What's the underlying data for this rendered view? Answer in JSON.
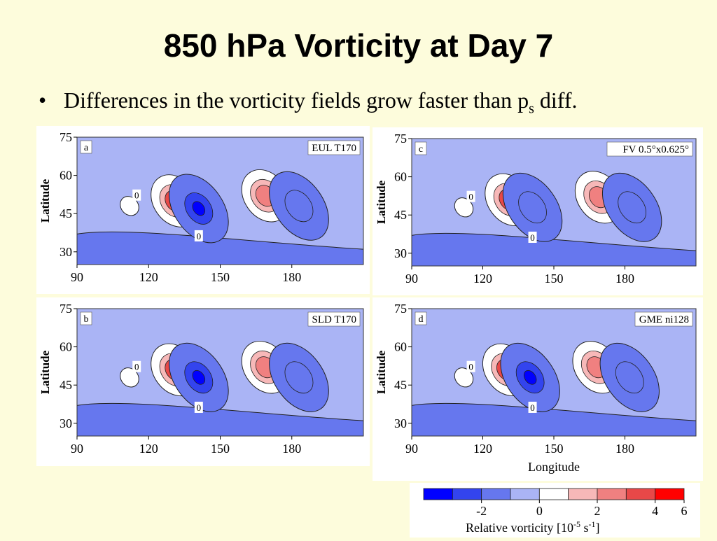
{
  "slide": {
    "title": "850 hPa Vorticity at Day 7",
    "bullet_main": "Differences in the vorticity fields grow faster than p",
    "bullet_sub": "s",
    "bullet_end": " diff."
  },
  "colors": {
    "background": "#fdfcdc",
    "levels": [
      "#0000ff",
      "#3344ee",
      "#6677ee",
      "#aab4f5",
      "#ffffff",
      "#f7b8b8",
      "#f08080",
      "#e84848",
      "#ff0000"
    ]
  },
  "chart_data": [
    {
      "type": "heatmap",
      "panel_letter": "a",
      "model_label": "EUL T170",
      "ylabel": "Latitude",
      "xlabel": "",
      "xlim": [
        90,
        210
      ],
      "ylim": [
        25,
        75
      ],
      "x_ticks": [
        "90",
        "120",
        "150",
        "180"
      ],
      "y_ticks": [
        "75",
        "60",
        "45",
        "30"
      ],
      "zero_labels": [
        "0",
        "0"
      ],
      "features": [
        {
          "lon": 131,
          "lat": 50,
          "value": 6,
          "sign": "positive"
        },
        {
          "lon": 141,
          "lat": 47,
          "value": -3,
          "sign": "negative"
        },
        {
          "lon": 169,
          "lat": 52,
          "value": 3,
          "sign": "positive"
        },
        {
          "lon": 183,
          "lat": 48,
          "value": -2,
          "sign": "negative"
        }
      ]
    },
    {
      "type": "heatmap",
      "panel_letter": "c",
      "model_label": "FV 0.5°x0.625°",
      "ylabel": "Latitude",
      "xlabel": "",
      "xlim": [
        90,
        210
      ],
      "ylim": [
        25,
        75
      ],
      "x_ticks": [
        "90",
        "120",
        "150",
        "180"
      ],
      "y_ticks": [
        "75",
        "60",
        "45",
        "30"
      ],
      "zero_labels": [
        "0",
        "0"
      ],
      "features": [
        {
          "lon": 131,
          "lat": 51,
          "value": 4,
          "sign": "positive"
        },
        {
          "lon": 141,
          "lat": 48,
          "value": -2,
          "sign": "negative"
        },
        {
          "lon": 169,
          "lat": 52,
          "value": 3,
          "sign": "positive"
        },
        {
          "lon": 183,
          "lat": 48,
          "value": -2,
          "sign": "negative"
        }
      ]
    },
    {
      "type": "heatmap",
      "panel_letter": "b",
      "model_label": "SLD T170",
      "ylabel": "Latitude",
      "xlabel": "",
      "xlim": [
        90,
        210
      ],
      "ylim": [
        25,
        75
      ],
      "x_ticks": [
        "90",
        "120",
        "150",
        "180"
      ],
      "y_ticks": [
        "75",
        "60",
        "45",
        "30"
      ],
      "zero_labels": [
        "0",
        "0"
      ],
      "features": [
        {
          "lon": 131,
          "lat": 51,
          "value": 5,
          "sign": "positive"
        },
        {
          "lon": 141,
          "lat": 48,
          "value": -3,
          "sign": "negative"
        },
        {
          "lon": 169,
          "lat": 52,
          "value": 3,
          "sign": "positive"
        },
        {
          "lon": 183,
          "lat": 48,
          "value": -2,
          "sign": "negative"
        }
      ]
    },
    {
      "type": "heatmap",
      "panel_letter": "d",
      "model_label": "GME ni128",
      "ylabel": "Latitude",
      "xlabel": "Longitude",
      "xlim": [
        90,
        210
      ],
      "ylim": [
        25,
        75
      ],
      "x_ticks": [
        "90",
        "120",
        "150",
        "180"
      ],
      "y_ticks": [
        "75",
        "60",
        "45",
        "30"
      ],
      "zero_labels": [
        "0",
        "0"
      ],
      "features": [
        {
          "lon": 130,
          "lat": 51,
          "value": 6,
          "sign": "positive"
        },
        {
          "lon": 140,
          "lat": 48,
          "value": -3,
          "sign": "negative"
        },
        {
          "lon": 168,
          "lat": 52,
          "value": 3,
          "sign": "positive"
        },
        {
          "lon": 182,
          "lat": 48,
          "value": -2,
          "sign": "negative"
        }
      ]
    }
  ],
  "colorbar": {
    "ticks": [
      "-2",
      "0",
      "2",
      "4",
      "6"
    ],
    "label": "Relative vorticity [10",
    "label_exp1": "-5",
    "label_mid": " s",
    "label_exp2": "-1",
    "label_end": "]"
  }
}
